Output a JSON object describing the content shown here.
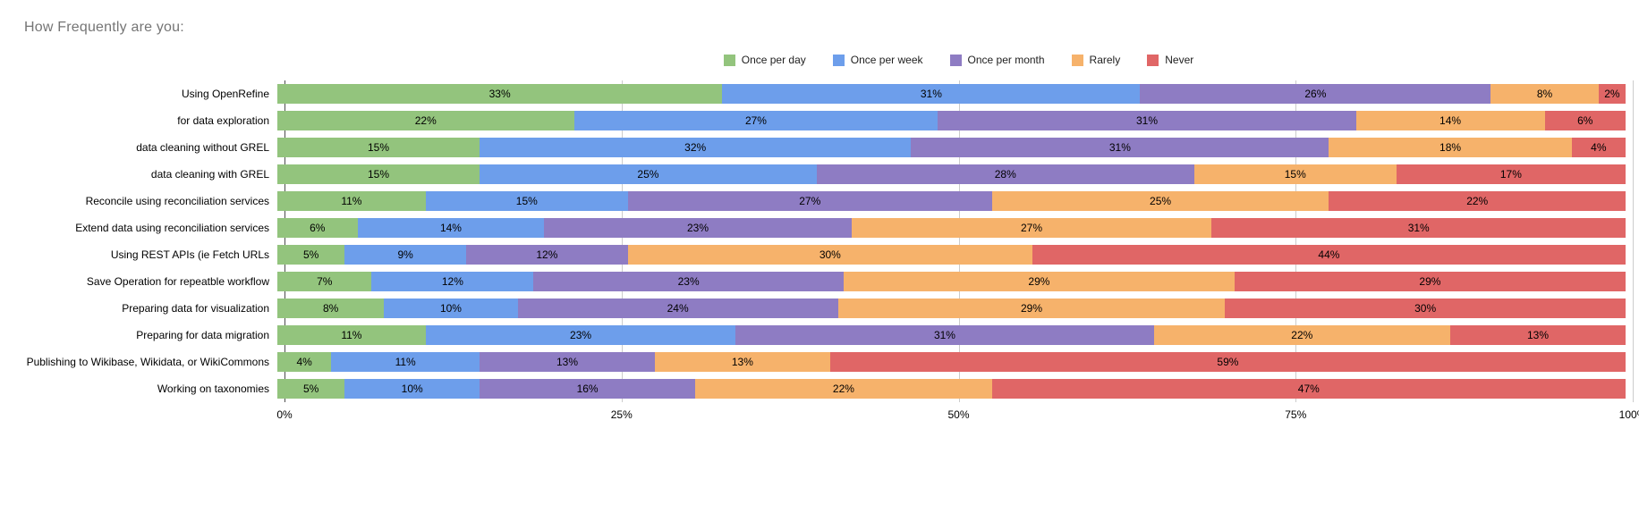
{
  "title": "How Frequently are you:",
  "chart_data": {
    "type": "bar",
    "stacked": true,
    "orientation": "horizontal",
    "title": "How Frequently are you:",
    "grid": true,
    "legend_position": "top",
    "value_suffix": "%",
    "xlim": [
      0,
      100
    ],
    "x_ticks": [
      "0%",
      "25%",
      "50%",
      "75%",
      "100%"
    ],
    "categories": [
      "Using OpenRefine",
      "for data exploration",
      "data cleaning without GREL",
      "data cleaning with GREL",
      "Reconcile using reconciliation services",
      "Extend data using reconciliation services",
      "Using REST APIs (ie Fetch URLs",
      "Save Operation for repeatble workflow",
      "Preparing data for visualization",
      "Preparing for data migration",
      "Publishing to Wikibase, Wikidata, or WikiCommons",
      "Working on taxonomies"
    ],
    "series": [
      {
        "name": "Once per day",
        "color": "#93c47d",
        "values": [
          33,
          22,
          15,
          15,
          11,
          6,
          5,
          7,
          8,
          11,
          4,
          5
        ]
      },
      {
        "name": "Once per week",
        "color": "#6d9eeb",
        "values": [
          31,
          27,
          32,
          25,
          15,
          14,
          9,
          12,
          10,
          23,
          11,
          10
        ]
      },
      {
        "name": "Once per month",
        "color": "#8e7cc3",
        "values": [
          26,
          31,
          31,
          28,
          27,
          23,
          12,
          23,
          24,
          31,
          13,
          16
        ]
      },
      {
        "name": "Rarely",
        "color": "#f6b26b",
        "values": [
          8,
          14,
          18,
          15,
          25,
          27,
          30,
          29,
          29,
          22,
          13,
          22
        ]
      },
      {
        "name": "Never",
        "color": "#e06666",
        "values": [
          2,
          6,
          4,
          17,
          22,
          31,
          44,
          29,
          30,
          13,
          59,
          47
        ]
      }
    ],
    "colors": {
      "title_text": "#757575",
      "label_text": "#000000",
      "gridline": "#cccccc",
      "baseline": "#4d4d4d",
      "background": "#ffffff"
    }
  }
}
